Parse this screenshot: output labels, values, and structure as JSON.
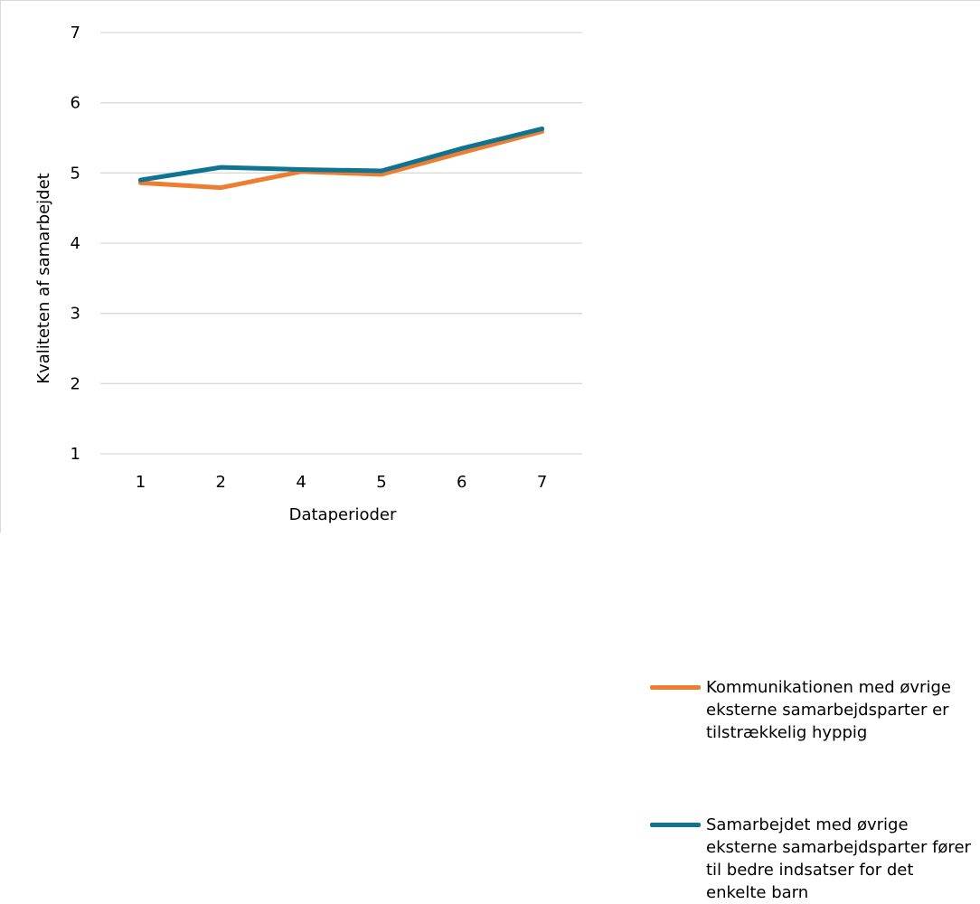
{
  "chart_data": {
    "type": "line",
    "title": "",
    "xlabel": "Dataperioder",
    "ylabel": "Kvaliteten af samarbejdet",
    "categories": [
      "1",
      "2",
      "4",
      "5",
      "6",
      "7"
    ],
    "ylim": [
      1,
      7
    ],
    "yticks": [
      1,
      2,
      3,
      4,
      5,
      6,
      7
    ],
    "grid": "horizontal",
    "legend_position": "right",
    "series": [
      {
        "name": "Kommunikationen med øvrige eksterne samarbejdsparter er tilstrækkelig hyppig",
        "color": "#ED7D31",
        "values": [
          4.86,
          4.79,
          5.02,
          4.98,
          5.29,
          5.59
        ]
      },
      {
        "name": "Samarbejdet med øvrige eksterne samarbejdsparter fører til bedre indsatser for det enkelte barn",
        "color": "#0E7491",
        "values": [
          4.9,
          5.08,
          5.05,
          5.03,
          5.35,
          5.63
        ]
      }
    ]
  }
}
